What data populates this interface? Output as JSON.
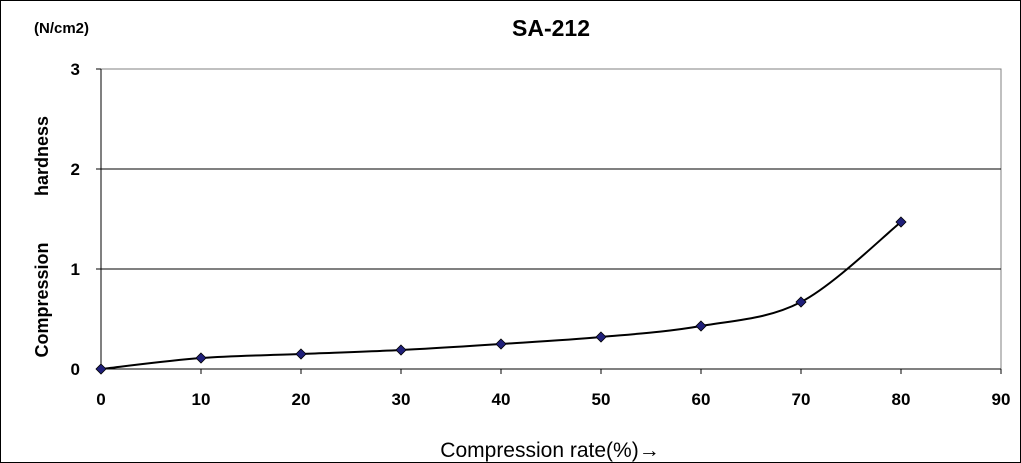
{
  "chart_data": {
    "type": "line",
    "title": "SA-212",
    "unit_label": "(N/cm2)",
    "ylabel_words": [
      "Compression",
      "hardness"
    ],
    "xlabel": "Compression rate(%)→",
    "xlim": [
      0,
      90
    ],
    "ylim": [
      0,
      3
    ],
    "x_ticks": [
      0,
      10,
      20,
      30,
      40,
      50,
      60,
      70,
      80,
      90
    ],
    "y_ticks": [
      0,
      1,
      2,
      3
    ],
    "grid": "horizontal",
    "series": [
      {
        "x": [
          0,
          10,
          20,
          30,
          40,
          50,
          60,
          70,
          80
        ],
        "y": [
          0.0,
          0.11,
          0.15,
          0.19,
          0.25,
          0.32,
          0.43,
          0.67,
          1.47
        ],
        "color": "#000000",
        "marker_color": "#1f1f7a",
        "marker": "diamond",
        "smooth": true
      }
    ]
  }
}
